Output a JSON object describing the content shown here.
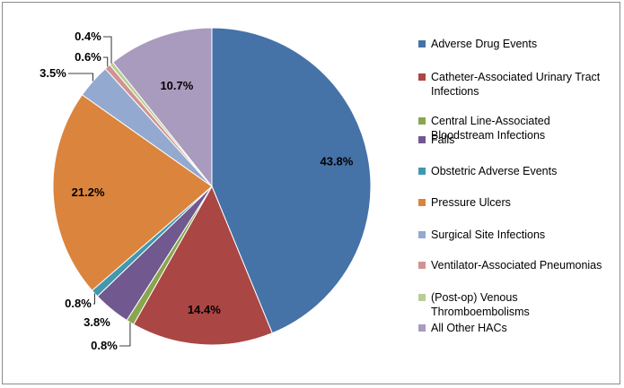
{
  "chart_data": {
    "type": "pie",
    "title": "",
    "categories": [
      "Adverse Drug Events",
      "Catheter-Associated Urinary Tract Infections",
      "Central Line-Associated Bloodstream Infections",
      "Falls",
      "Obstetric Adverse Events",
      "Pressure Ulcers",
      "Surgical Site Infections",
      "Ventilator-Associated Pneumonias",
      "(Post-op) Venous Thromboembolisms",
      "All Other HACs"
    ],
    "values": [
      43.8,
      14.4,
      0.8,
      3.8,
      0.8,
      21.2,
      3.5,
      0.6,
      0.4,
      10.7
    ],
    "data_labels": [
      "43.8%",
      "14.4%",
      "0.8%",
      "3.8%",
      "0.8%",
      "21.2%",
      "3.5%",
      "0.6%",
      "0.4%",
      "10.7%"
    ],
    "colors": [
      "#4572a7",
      "#aa4643",
      "#89a54e",
      "#71588f",
      "#4198af",
      "#db843d",
      "#93a9cf",
      "#d19392",
      "#b9cd96",
      "#a99bbd"
    ],
    "legend_position": "right",
    "start_angle": "top",
    "direction": "clockwise"
  }
}
